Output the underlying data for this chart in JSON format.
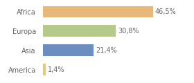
{
  "categories": [
    "America",
    "Asia",
    "Europa",
    "Africa"
  ],
  "values": [
    1.4,
    21.4,
    30.8,
    46.5
  ],
  "labels": [
    "1,4%",
    "21,4%",
    "30,8%",
    "46,5%"
  ],
  "bar_colors": [
    "#e8c97a",
    "#6b8dc0",
    "#b5c98a",
    "#e8b87a"
  ],
  "background_color": "#ffffff",
  "xlim": [
    0,
    62
  ],
  "bar_height": 0.6,
  "label_fontsize": 7,
  "tick_fontsize": 7,
  "tick_color": "#666666"
}
